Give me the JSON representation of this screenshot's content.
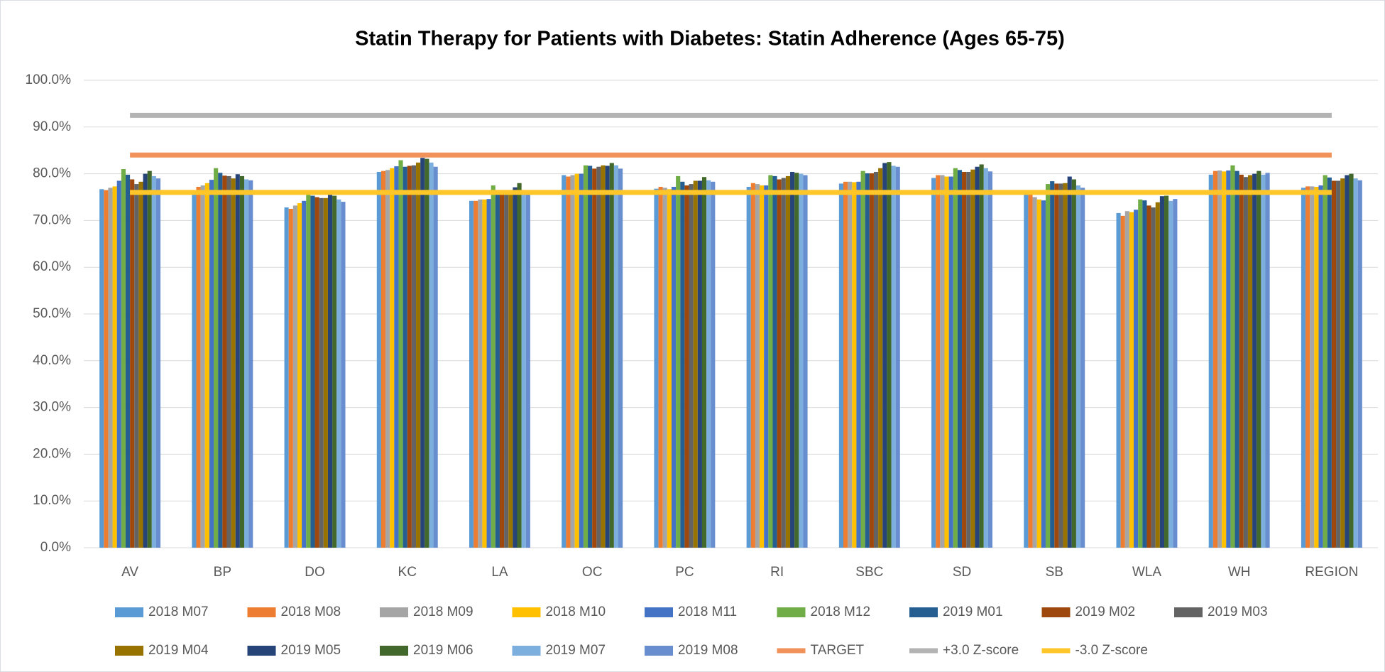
{
  "chart_data": {
    "type": "bar",
    "title": "Statin Therapy for Patients with Diabetes: Statin Adherence (Ages 65-75)",
    "categories": [
      "AV",
      "BP",
      "DO",
      "KC",
      "LA",
      "OC",
      "PC",
      "RI",
      "SBC",
      "SD",
      "SB",
      "WLA",
      "WH",
      "REGION"
    ],
    "ylim": [
      0,
      100
    ],
    "yticks": [
      {
        "value": 0,
        "label": "0.0%"
      },
      {
        "value": 10,
        "label": "10.0%"
      },
      {
        "value": 20,
        "label": "20.0%"
      },
      {
        "value": 30,
        "label": "30.0%"
      },
      {
        "value": 40,
        "label": "40.0%"
      },
      {
        "value": 50,
        "label": "50.0%"
      },
      {
        "value": 60,
        "label": "60.0%"
      },
      {
        "value": 70,
        "label": "70.0%"
      },
      {
        "value": 80,
        "label": "80.0%"
      },
      {
        "value": 90,
        "label": "90.0%"
      },
      {
        "value": 100,
        "label": "100.0%"
      }
    ],
    "grid": true,
    "legend": "bottom",
    "series": [
      {
        "name": "2018 M07",
        "color": "#5b9bd5",
        "values": [
          76.7,
          76.5,
          72.8,
          80.4,
          74.2,
          79.7,
          76.8,
          77.2,
          77.9,
          79.1,
          76.0,
          71.6,
          79.8,
          77.0
        ]
      },
      {
        "name": "2018 M08",
        "color": "#ed7d31",
        "values": [
          76.5,
          77.2,
          72.5,
          80.6,
          74.2,
          79.4,
          77.2,
          78.0,
          78.3,
          79.7,
          76.3,
          71.0,
          80.6,
          77.3
        ]
      },
      {
        "name": "2018 M09",
        "color": "#a5a5a5",
        "values": [
          77.0,
          77.5,
          73.2,
          80.8,
          74.5,
          79.7,
          77.0,
          77.8,
          78.3,
          79.7,
          75.0,
          72.0,
          80.7,
          77.3
        ]
      },
      {
        "name": "2018 M10",
        "color": "#ffc000",
        "values": [
          77.3,
          78.0,
          73.7,
          81.2,
          74.5,
          80.0,
          76.7,
          77.5,
          78.2,
          79.4,
          74.5,
          71.8,
          80.5,
          77.2
        ]
      },
      {
        "name": "2018 M11",
        "color": "#4472c4",
        "values": [
          78.5,
          78.7,
          74.2,
          81.6,
          74.6,
          80.0,
          77.2,
          77.5,
          78.3,
          79.4,
          74.3,
          72.3,
          80.7,
          77.5
        ]
      },
      {
        "name": "2018 M12",
        "color": "#70ad47",
        "values": [
          81.0,
          81.2,
          75.5,
          82.9,
          77.5,
          81.8,
          79.5,
          79.7,
          80.6,
          81.2,
          77.8,
          74.5,
          81.8,
          79.7
        ]
      },
      {
        "name": "2019 M01",
        "color": "#255e91",
        "values": [
          79.8,
          80.2,
          75.3,
          81.5,
          76.0,
          81.7,
          78.3,
          79.5,
          80.1,
          80.8,
          78.4,
          74.3,
          80.6,
          79.2
        ]
      },
      {
        "name": "2019 M02",
        "color": "#9e480e",
        "values": [
          78.8,
          79.6,
          75.0,
          81.7,
          76.0,
          81.1,
          77.5,
          78.8,
          80.1,
          80.4,
          77.9,
          73.2,
          79.8,
          78.5
        ]
      },
      {
        "name": "2019 M03",
        "color": "#636363",
        "values": [
          77.8,
          79.5,
          74.8,
          81.8,
          76.0,
          81.5,
          77.8,
          79.1,
          80.4,
          80.4,
          77.9,
          72.8,
          79.3,
          78.5
        ]
      },
      {
        "name": "2019 M04",
        "color": "#997300",
        "values": [
          78.3,
          79.0,
          74.8,
          82.4,
          76.5,
          81.8,
          78.5,
          79.5,
          81.2,
          80.9,
          78.0,
          73.9,
          79.7,
          79.0
        ]
      },
      {
        "name": "2019 M05",
        "color": "#264478",
        "values": [
          80.0,
          79.9,
          75.5,
          83.4,
          77.1,
          81.7,
          78.5,
          80.4,
          82.3,
          81.5,
          79.4,
          75.2,
          80.0,
          79.7
        ]
      },
      {
        "name": "2019 M06",
        "color": "#43682b",
        "values": [
          80.6,
          79.5,
          75.3,
          83.2,
          78.0,
          82.3,
          79.3,
          80.2,
          82.5,
          82.0,
          78.8,
          75.3,
          80.6,
          80.0
        ]
      },
      {
        "name": "2019 M07",
        "color": "#7cafdd",
        "values": [
          79.5,
          78.8,
          74.5,
          82.4,
          76.5,
          81.8,
          78.6,
          80.0,
          81.7,
          81.2,
          77.5,
          74.2,
          79.8,
          79.0
        ]
      },
      {
        "name": "2019 M08",
        "color": "#698ed0",
        "values": [
          79.0,
          78.6,
          74.0,
          81.5,
          76.3,
          81.1,
          78.3,
          79.7,
          81.5,
          80.5,
          77.0,
          74.6,
          80.2,
          78.6
        ]
      }
    ],
    "lines": [
      {
        "name": "TARGET",
        "color": "#f0925a",
        "value": 84
      },
      {
        "name": "+3.0 Z-score",
        "color": "#b3b3b3",
        "value": 92.5
      },
      {
        "name": "-3.0 Z-score",
        "color": "#ffc62a",
        "value": 76
      }
    ]
  }
}
